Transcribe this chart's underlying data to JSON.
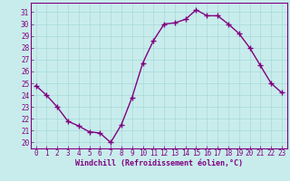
{
  "x": [
    0,
    1,
    2,
    3,
    4,
    5,
    6,
    7,
    8,
    9,
    10,
    11,
    12,
    13,
    14,
    15,
    16,
    17,
    18,
    19,
    20,
    21,
    22,
    23
  ],
  "y": [
    24.8,
    24.0,
    23.0,
    21.8,
    21.4,
    20.9,
    20.8,
    20.0,
    21.5,
    23.8,
    26.7,
    28.6,
    30.0,
    30.1,
    30.4,
    31.2,
    30.7,
    30.7,
    30.0,
    29.2,
    28.0,
    26.5,
    25.0,
    24.2
  ],
  "color": "#800080",
  "bg_color": "#c8ecec",
  "grid_color": "#a8d8d8",
  "xlabel": "Windchill (Refroidissement éolien,°C)",
  "ylim": [
    19.5,
    31.8
  ],
  "xlim": [
    -0.5,
    23.5
  ],
  "yticks": [
    20,
    21,
    22,
    23,
    24,
    25,
    26,
    27,
    28,
    29,
    30,
    31
  ],
  "xticks": [
    0,
    1,
    2,
    3,
    4,
    5,
    6,
    7,
    8,
    9,
    10,
    11,
    12,
    13,
    14,
    15,
    16,
    17,
    18,
    19,
    20,
    21,
    22,
    23
  ],
  "marker": "+",
  "linewidth": 1.0,
  "markersize": 4,
  "markeredgewidth": 1.0,
  "tick_fontsize": 5.5,
  "xlabel_fontsize": 6.0
}
